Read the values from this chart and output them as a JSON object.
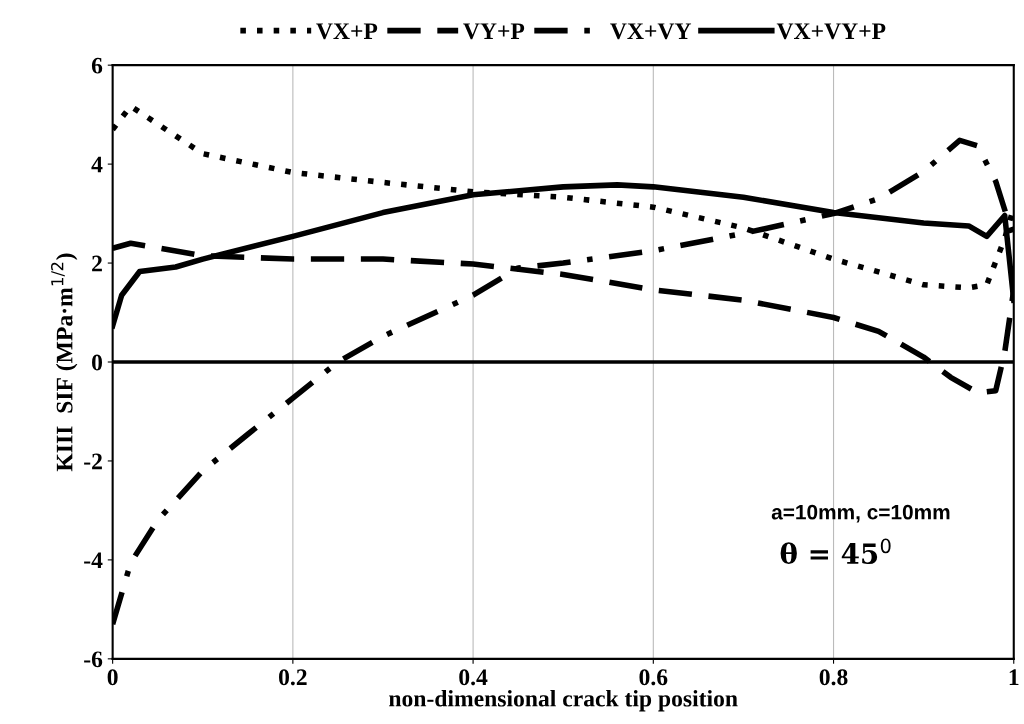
{
  "chart_data": {
    "type": "line",
    "xlabel": "non-dimensional crack tip position",
    "ylabel": "KIII  SIF (MPa·m$^{1/2}$)",
    "xlim": [
      0,
      1
    ],
    "ylim": [
      -6,
      6
    ],
    "xticks": [
      0,
      0.2,
      0.4,
      0.6,
      0.8,
      1
    ],
    "yticks": [
      -6,
      -4,
      -2,
      0,
      2,
      4,
      6
    ],
    "grid": "x",
    "legend": "top",
    "marker": "none",
    "ref_lines": [
      {
        "axis": "y",
        "value": 0,
        "color": "#000000",
        "line_style": "solid"
      }
    ],
    "annotations": [
      "a=10mm, c=10mm",
      "θ = 45$^{0}$"
    ],
    "series": [
      {
        "name": "VX+P",
        "color": "#000000",
        "line_style": "dotted",
        "x": [
          0,
          0.02,
          0.1,
          0.2,
          0.3,
          0.4,
          0.5,
          0.6,
          0.7,
          0.8,
          0.9,
          0.95,
          0.97,
          0.99,
          1.0
        ],
        "values": [
          4.7,
          5.17,
          4.21,
          3.83,
          3.63,
          3.44,
          3.33,
          3.13,
          2.71,
          2.08,
          1.56,
          1.5,
          1.56,
          2.5,
          3.13
        ]
      },
      {
        "name": "VY+P",
        "color": "#000000",
        "line_style": "dashed",
        "x": [
          0,
          0.02,
          0.1,
          0.2,
          0.3,
          0.4,
          0.5,
          0.6,
          0.7,
          0.8,
          0.85,
          0.9,
          0.93,
          0.96,
          0.98,
          0.99,
          1.0
        ],
        "values": [
          2.3,
          2.4,
          2.15,
          2.08,
          2.08,
          1.98,
          1.77,
          1.46,
          1.25,
          0.9,
          0.62,
          0.1,
          -0.31,
          -0.62,
          -0.58,
          0.2,
          1.46
        ]
      },
      {
        "name": "VX+VY",
        "color": "#000000",
        "line_style": "dashdot",
        "x": [
          0,
          0.02,
          0.05,
          0.1,
          0.15,
          0.2,
          0.25,
          0.3,
          0.4,
          0.45,
          0.5,
          0.6,
          0.7,
          0.8,
          0.85,
          0.9,
          0.94,
          0.96,
          0.98,
          1.0
        ],
        "values": [
          -5.3,
          -4.06,
          -3.2,
          -2.2,
          -1.46,
          -0.73,
          0.0,
          0.52,
          1.35,
          1.9,
          2.0,
          2.25,
          2.6,
          3.0,
          3.3,
          3.85,
          4.48,
          4.37,
          3.65,
          2.5
        ]
      },
      {
        "name": "VX+VY+P",
        "color": "#000000",
        "line_style": "solid",
        "x": [
          0,
          0.01,
          0.03,
          0.07,
          0.1,
          0.2,
          0.3,
          0.4,
          0.5,
          0.56,
          0.6,
          0.7,
          0.8,
          0.9,
          0.95,
          0.97,
          0.99,
          1.0
        ],
        "values": [
          0.73,
          1.35,
          1.83,
          1.92,
          2.08,
          2.54,
          3.02,
          3.38,
          3.54,
          3.58,
          3.54,
          3.33,
          3.02,
          2.81,
          2.75,
          2.54,
          2.96,
          1.25
        ]
      }
    ]
  }
}
